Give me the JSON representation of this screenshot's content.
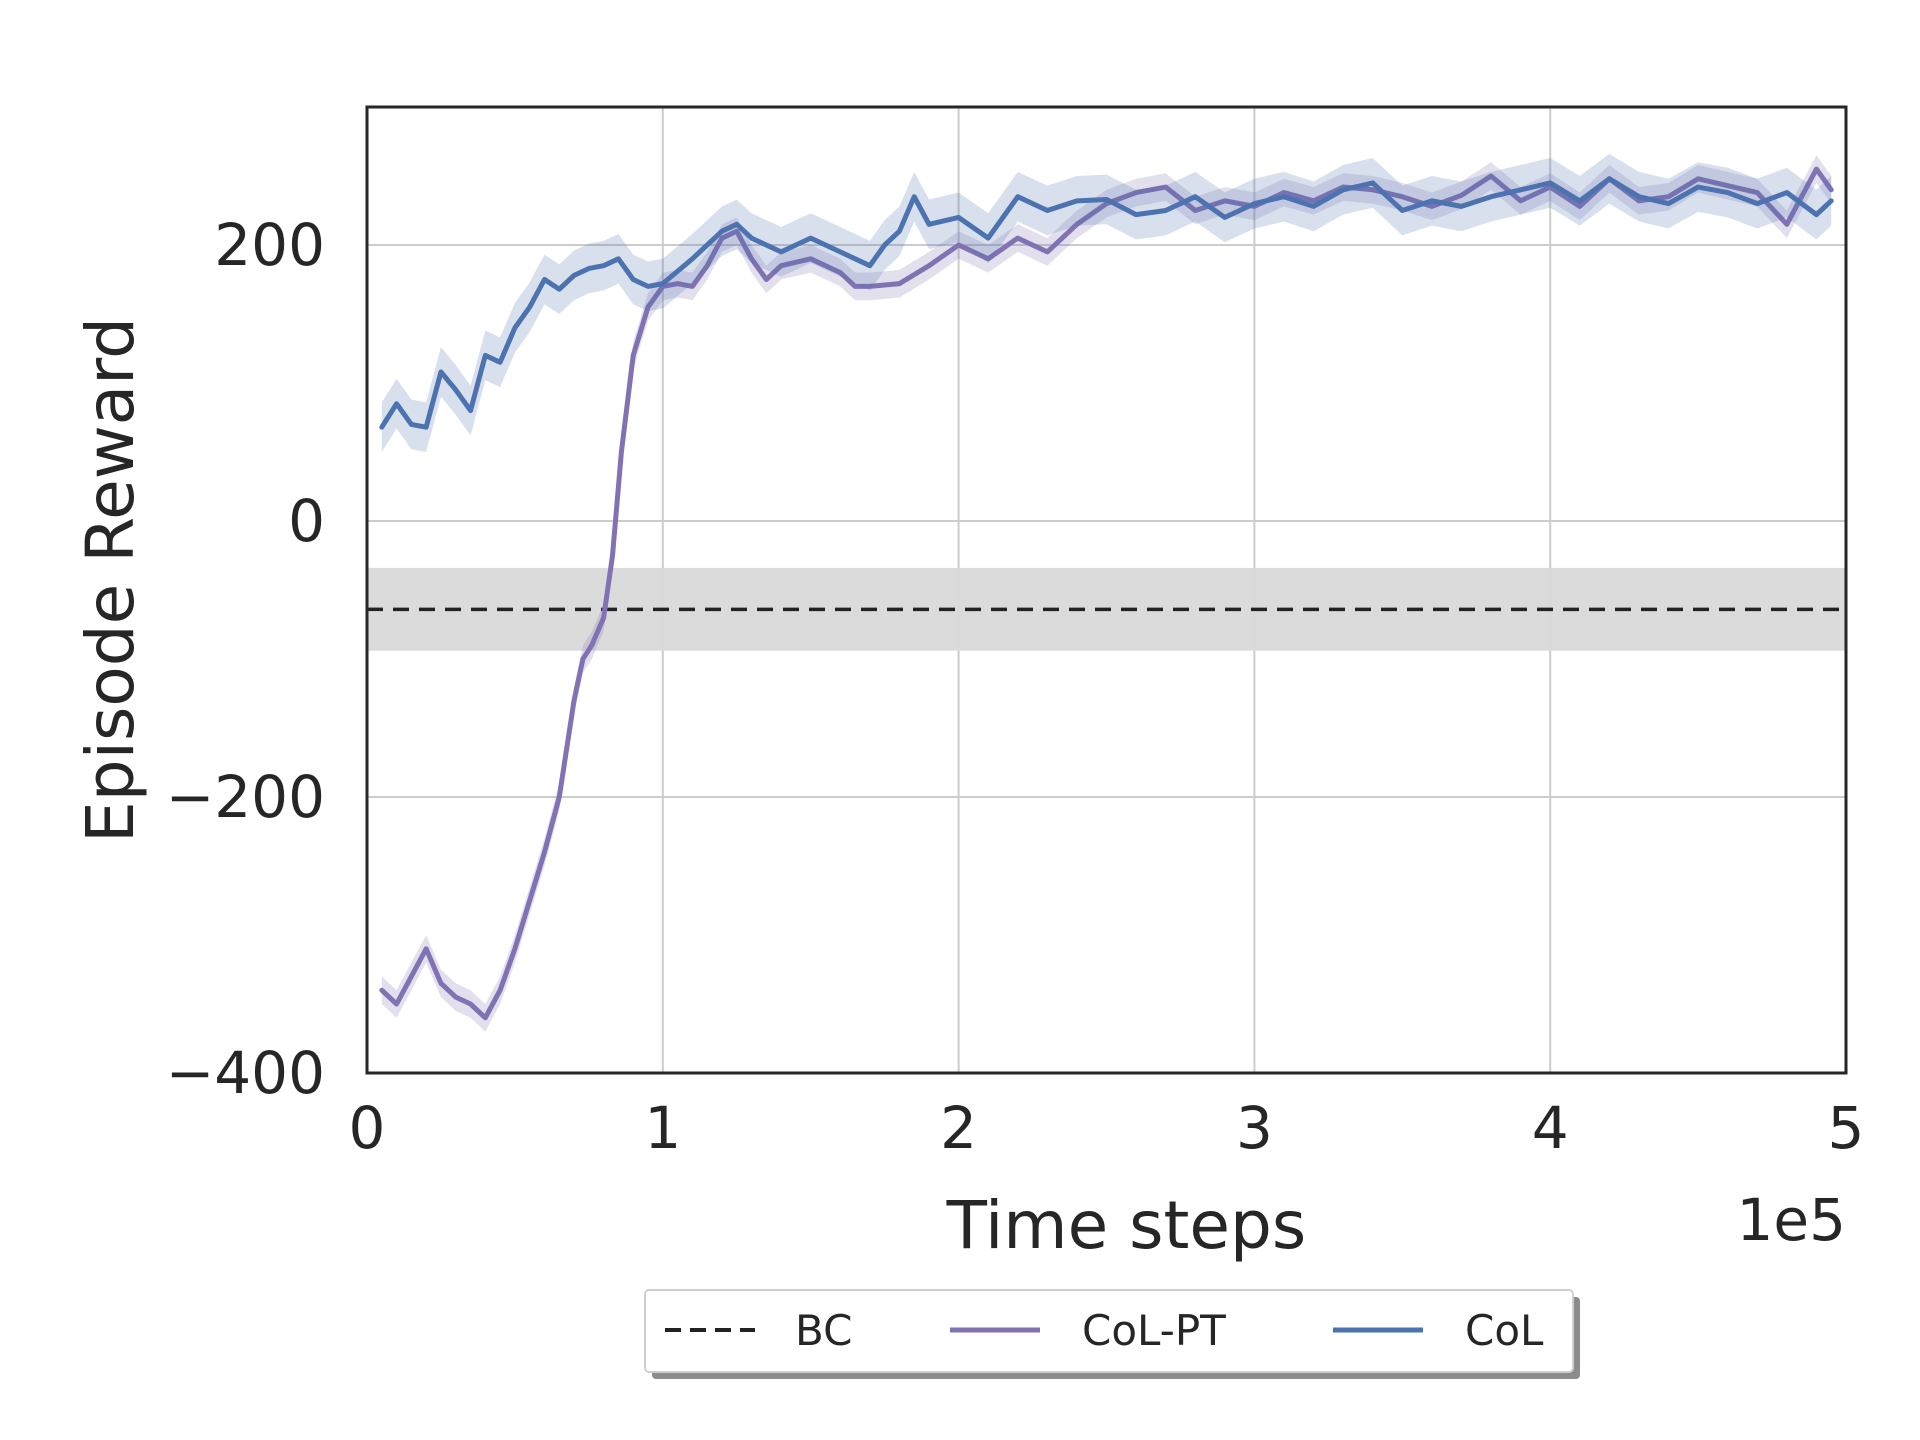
{
  "chart_data": {
    "type": "line",
    "xlabel": "Time steps",
    "ylabel": "Episode Reward",
    "x_offset_label": "1e5",
    "xlim": [
      0,
      5
    ],
    "ylim": [
      -400,
      300
    ],
    "xticks": [
      0,
      1,
      2,
      3,
      4,
      5
    ],
    "xtick_labels": [
      "0",
      "1",
      "2",
      "3",
      "4",
      "5"
    ],
    "yticks": [
      -400,
      -200,
      0,
      200
    ],
    "ytick_labels": [
      "−400",
      "−200",
      "0",
      "200"
    ],
    "grid": true,
    "legend_position": "bottom-center",
    "colors": {
      "BC": "#222222",
      "CoL-PT": "#8172b3",
      "CoL": "#4c72b0",
      "band": "#d9d9d9",
      "grid": "#cccccc",
      "frame": "#262626"
    },
    "baseline": {
      "name": "BC",
      "value": -64,
      "band": [
        -34,
        -94
      ],
      "style": "dashed"
    },
    "series": [
      {
        "name": "CoL-PT",
        "spread": 10,
        "x": [
          0.05,
          0.1,
          0.15,
          0.2,
          0.25,
          0.3,
          0.35,
          0.4,
          0.45,
          0.5,
          0.55,
          0.6,
          0.65,
          0.7,
          0.73,
          0.76,
          0.8,
          0.83,
          0.86,
          0.9,
          0.95,
          1.0,
          1.05,
          1.1,
          1.15,
          1.2,
          1.25,
          1.3,
          1.35,
          1.4,
          1.5,
          1.6,
          1.65,
          1.7,
          1.8,
          1.9,
          2.0,
          2.1,
          2.2,
          2.3,
          2.4,
          2.5,
          2.6,
          2.7,
          2.8,
          2.9,
          3.0,
          3.1,
          3.2,
          3.3,
          3.4,
          3.5,
          3.6,
          3.7,
          3.8,
          3.9,
          4.0,
          4.1,
          4.2,
          4.3,
          4.4,
          4.5,
          4.6,
          4.7,
          4.8,
          4.9,
          4.95
        ],
        "y": [
          -340,
          -350,
          -330,
          -310,
          -335,
          -345,
          -350,
          -360,
          -340,
          -310,
          -275,
          -240,
          -200,
          -130,
          -100,
          -90,
          -70,
          -25,
          50,
          120,
          155,
          170,
          172,
          170,
          185,
          205,
          210,
          190,
          175,
          185,
          190,
          180,
          170,
          170,
          172,
          185,
          200,
          190,
          205,
          195,
          215,
          230,
          238,
          242,
          225,
          232,
          228,
          238,
          232,
          242,
          240,
          235,
          228,
          236,
          250,
          232,
          242,
          228,
          248,
          232,
          235,
          248,
          243,
          238,
          215,
          255,
          240
        ]
      },
      {
        "name": "CoL",
        "spread": 18,
        "x": [
          0.05,
          0.1,
          0.15,
          0.2,
          0.25,
          0.3,
          0.35,
          0.4,
          0.45,
          0.5,
          0.55,
          0.6,
          0.65,
          0.7,
          0.75,
          0.8,
          0.85,
          0.9,
          0.95,
          1.0,
          1.1,
          1.2,
          1.25,
          1.3,
          1.35,
          1.4,
          1.5,
          1.6,
          1.7,
          1.75,
          1.8,
          1.85,
          1.9,
          2.0,
          2.1,
          2.2,
          2.3,
          2.4,
          2.5,
          2.6,
          2.7,
          2.8,
          2.9,
          3.0,
          3.1,
          3.2,
          3.3,
          3.4,
          3.5,
          3.6,
          3.7,
          3.8,
          3.9,
          4.0,
          4.1,
          4.2,
          4.3,
          4.4,
          4.5,
          4.6,
          4.7,
          4.8,
          4.9,
          4.95
        ],
        "y": [
          68,
          85,
          70,
          68,
          108,
          95,
          80,
          120,
          115,
          140,
          155,
          175,
          168,
          178,
          183,
          185,
          190,
          175,
          170,
          172,
          190,
          210,
          215,
          205,
          200,
          195,
          205,
          195,
          185,
          200,
          210,
          235,
          215,
          220,
          205,
          235,
          225,
          232,
          233,
          222,
          225,
          235,
          220,
          230,
          235,
          228,
          240,
          245,
          225,
          232,
          228,
          235,
          240,
          245,
          232,
          248,
          235,
          230,
          242,
          238,
          230,
          238,
          222,
          232
        ]
      }
    ],
    "legend": [
      "BC",
      "CoL-PT",
      "CoL"
    ]
  }
}
